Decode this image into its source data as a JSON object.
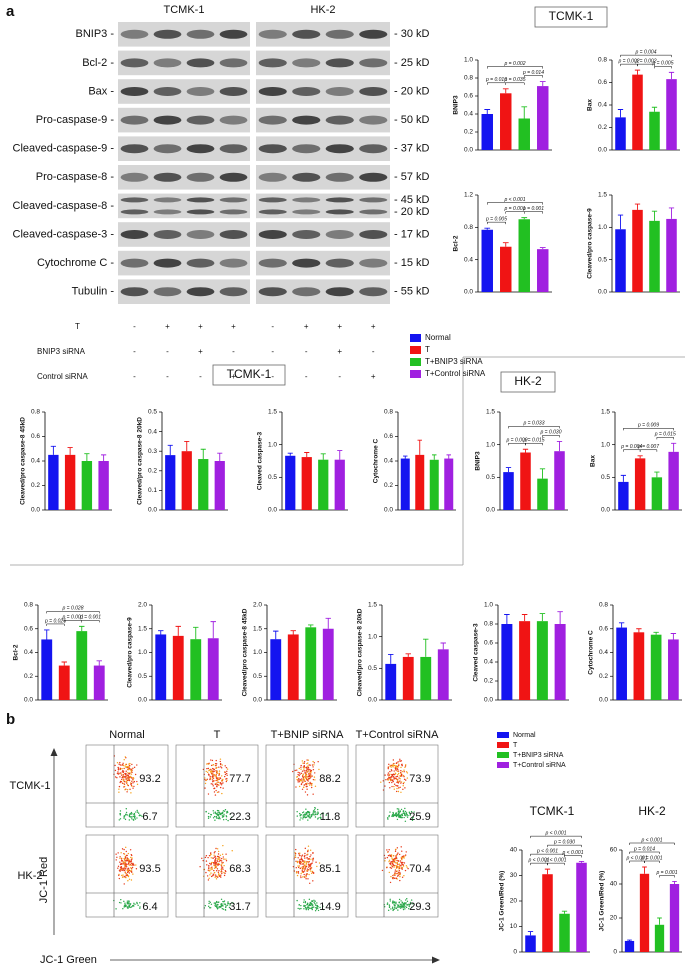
{
  "panel_a": {
    "label": "a",
    "blot": {
      "cell_lines": [
        "TCMK-1",
        "HK-2"
      ],
      "proteins": [
        {
          "name": "BNIP3 -",
          "kd": [
            "- 30 kD"
          ]
        },
        {
          "name": "Bcl-2 -",
          "kd": [
            "- 25 kD"
          ]
        },
        {
          "name": "Bax -",
          "kd": [
            "- 20 kD"
          ]
        },
        {
          "name": "Pro-caspase-9 -",
          "kd": [
            "- 50 kD"
          ]
        },
        {
          "name": "Cleaved-caspase-9 -",
          "kd": [
            "- 37 kD"
          ]
        },
        {
          "name": "Pro-caspase-8 -",
          "kd": [
            "- 57 kD"
          ]
        },
        {
          "name": "Cleaved-caspase-8 -",
          "kd": [
            "- 45 kD",
            "- 20 kD"
          ]
        },
        {
          "name": "Cleaved-caspase-3 -",
          "kd": [
            "- 17 kD"
          ]
        },
        {
          "name": "Cytochrome C -",
          "kd": [
            "- 15 kD"
          ]
        },
        {
          "name": "Tubulin -",
          "kd": [
            "- 55 kD"
          ]
        }
      ],
      "treatments": [
        {
          "name": "T",
          "signs": [
            "-",
            "+",
            "+",
            "+",
            "-",
            "+",
            "+",
            "+"
          ]
        },
        {
          "name": "BNIP3 siRNA",
          "signs": [
            "-",
            "-",
            "+",
            "-",
            "-",
            "-",
            "+",
            "-"
          ]
        },
        {
          "name": "Control siRNA",
          "signs": [
            "-",
            "-",
            "-",
            "+",
            "-",
            "-",
            "-",
            "+"
          ]
        }
      ]
    },
    "legend": [
      {
        "name": "Normal",
        "color": "#1414f0"
      },
      {
        "name": "T",
        "color": "#f01414"
      },
      {
        "name": "T+BNIP3 siRNA",
        "color": "#22c022"
      },
      {
        "name": "T+Control siRNA",
        "color": "#a020e0"
      }
    ],
    "headers": [
      "TCMK-1",
      "TCMK-1",
      "HK-2"
    ]
  },
  "panel_b": {
    "label": "b",
    "flow": {
      "columns": [
        "Normal",
        "T",
        "T+BNIP siRNA",
        "T+Control siRNA"
      ],
      "rows": [
        {
          "name": "TCMK-1",
          "top": [
            93.2,
            77.7,
            88.2,
            73.9
          ],
          "bottom": [
            6.7,
            22.3,
            11.8,
            25.9
          ]
        },
        {
          "name": "HK-2",
          "top": [
            93.5,
            68.3,
            85.1,
            70.4
          ],
          "bottom": [
            6.4,
            31.7,
            14.9,
            29.3
          ]
        }
      ],
      "y_label": "JC-1 Red",
      "x_label": "JC-1 Green"
    },
    "legend": [
      {
        "name": "Normal",
        "color": "#1414f0"
      },
      {
        "name": "T",
        "color": "#f01414"
      },
      {
        "name": "T+BNIP3 siRNA",
        "color": "#22c022"
      },
      {
        "name": "T+Control siRNA",
        "color": "#a020e0"
      }
    ],
    "headers": [
      "TCMK-1",
      "HK-2"
    ]
  },
  "chart_data": [
    {
      "type": "bar",
      "ylabel": "BNIP3",
      "values": [
        0.4,
        0.63,
        0.35,
        0.71
      ],
      "errors": [
        0.05,
        0.05,
        0.13,
        0.05
      ],
      "ylim": [
        0,
        1
      ],
      "yticks": [
        {
          "value": 0,
          "label": "0.0"
        },
        0.2,
        0.4,
        0.6,
        0.8,
        {
          "value": 1,
          "label": "1.0"
        }
      ],
      "comparisons": [
        {
          "groups": [
            0,
            1
          ],
          "label": "p = 0.010"
        },
        {
          "groups": [
            1,
            2
          ],
          "label": "p = 0.035"
        },
        {
          "groups": [
            2,
            3
          ],
          "label": "p = 0.014"
        },
        {
          "groups": [
            0,
            3
          ],
          "label": "p = 0.002"
        }
      ]
    },
    {
      "type": "bar",
      "ylabel": "Bax",
      "values": [
        0.29,
        0.67,
        0.34,
        0.63
      ],
      "errors": [
        0.07,
        0.04,
        0.04,
        0.06
      ],
      "ylim": [
        0,
        0.8
      ],
      "yticks": [
        {
          "value": 0,
          "label": "0.0"
        },
        0.2,
        0.4,
        0.6,
        0.8
      ],
      "comparisons": [
        {
          "groups": [
            0,
            1
          ],
          "label": "p = 0.002"
        },
        {
          "groups": [
            1,
            2
          ],
          "label": "p = 0.002"
        },
        {
          "groups": [
            2,
            3
          ],
          "label": "p = 0.005"
        },
        {
          "groups": [
            0,
            3
          ],
          "label": "p = 0.004"
        }
      ]
    },
    {
      "type": "bar",
      "ylabel": "Bcl-2",
      "values": [
        0.77,
        0.56,
        0.9,
        0.53
      ],
      "errors": [
        0.02,
        0.05,
        0.02,
        0.02
      ],
      "ylim": [
        0,
        1.2
      ],
      "yticks": [
        {
          "value": 0,
          "label": "0.0"
        },
        0.4,
        0.8,
        1.2
      ],
      "comparisons": [
        {
          "groups": [
            0,
            1
          ],
          "label": "p = 0.005"
        },
        {
          "groups": [
            1,
            2
          ],
          "label": "p = 0.001"
        },
        {
          "groups": [
            2,
            3
          ],
          "label": "p = 0.001"
        },
        {
          "groups": [
            0,
            3
          ],
          "label": "p < 0.001"
        }
      ]
    },
    {
      "type": "bar",
      "ylabel": "Cleaved/pro caspase-9",
      "values": [
        0.97,
        1.27,
        1.1,
        1.13
      ],
      "errors": [
        0.22,
        0.09,
        0.15,
        0.17
      ],
      "ylim": [
        0,
        1.5
      ],
      "yticks": [
        {
          "value": 0,
          "label": "0.0"
        },
        0.5,
        {
          "value": 1,
          "label": "1.0"
        },
        1.5
      ]
    },
    {
      "type": "bar",
      "ylabel": "Cleaved/pro caspase-8 45kD",
      "values": [
        0.45,
        0.45,
        0.4,
        0.4
      ],
      "errors": [
        0.07,
        0.06,
        0.06,
        0.05
      ],
      "ylim": [
        0,
        0.8
      ],
      "yticks": [
        {
          "value": 0,
          "label": "0.0"
        },
        0.2,
        0.4,
        0.6,
        0.8
      ]
    },
    {
      "type": "bar",
      "ylabel": "Cleaved/pro caspase-8 20kD",
      "values": [
        0.28,
        0.3,
        0.26,
        0.25
      ],
      "errors": [
        0.05,
        0.05,
        0.05,
        0.04
      ],
      "ylim": [
        0,
        0.5
      ],
      "yticks": [
        {
          "value": 0,
          "label": "0.0"
        },
        0.1,
        0.2,
        0.3,
        0.4,
        0.5
      ]
    },
    {
      "type": "bar",
      "ylabel": "Cleaved caspase-3",
      "values": [
        0.83,
        0.81,
        0.77,
        0.77
      ],
      "errors": [
        0.04,
        0.07,
        0.09,
        0.14
      ],
      "ylim": [
        0,
        1.5
      ],
      "yticks": [
        {
          "value": 0,
          "label": "0.0"
        },
        0.5,
        {
          "value": 1,
          "label": "1.0"
        },
        1.5
      ]
    },
    {
      "type": "bar",
      "ylabel": "Cytochrome C",
      "values": [
        0.42,
        0.45,
        0.41,
        0.42
      ],
      "errors": [
        0.02,
        0.12,
        0.04,
        0.03
      ],
      "ylim": [
        0,
        0.8
      ],
      "yticks": [
        {
          "value": 0,
          "label": "0.0"
        },
        0.2,
        0.4,
        0.6,
        0.8
      ]
    },
    {
      "type": "bar",
      "ylabel": "BNIP3",
      "values": [
        0.58,
        0.88,
        0.48,
        0.9
      ],
      "errors": [
        0.07,
        0.05,
        0.15,
        0.15
      ],
      "ylim": [
        0,
        1.5
      ],
      "yticks": [
        {
          "value": 0,
          "label": "0.0"
        },
        0.5,
        {
          "value": 1,
          "label": "1.0"
        },
        1.5
      ],
      "comparisons": [
        {
          "groups": [
            0,
            1
          ],
          "label": "p = 0.009"
        },
        {
          "groups": [
            1,
            2
          ],
          "label": "p = 0.015"
        },
        {
          "groups": [
            2,
            3
          ],
          "label": "p = 0.030"
        },
        {
          "groups": [
            0,
            3
          ],
          "label": "p = 0.033"
        }
      ]
    },
    {
      "type": "bar",
      "ylabel": "Bax",
      "values": [
        0.43,
        0.79,
        0.5,
        0.89
      ],
      "errors": [
        0.1,
        0.04,
        0.08,
        0.13
      ],
      "ylim": [
        0,
        1.5
      ],
      "yticks": [
        {
          "value": 0,
          "label": "0.0"
        },
        0.5,
        {
          "value": 1,
          "label": "1.0"
        },
        1.5
      ],
      "comparisons": [
        {
          "groups": [
            0,
            1
          ],
          "label": "p = 0.004"
        },
        {
          "groups": [
            1,
            2
          ],
          "label": "p = 0.007"
        },
        {
          "groups": [
            2,
            3
          ],
          "label": "p = 0.015"
        },
        {
          "groups": [
            0,
            3
          ],
          "label": "p = 0.009"
        }
      ]
    },
    {
      "type": "bar",
      "ylabel": "Bcl-2",
      "values": [
        0.51,
        0.29,
        0.58,
        0.29
      ],
      "errors": [
        0.08,
        0.03,
        0.04,
        0.04
      ],
      "ylim": [
        0,
        0.8
      ],
      "yticks": [
        {
          "value": 0,
          "label": "0.0"
        },
        0.2,
        0.4,
        0.6,
        0.8
      ],
      "comparisons": [
        {
          "groups": [
            0,
            1
          ],
          "label": "p = 0.026"
        },
        {
          "groups": [
            1,
            2
          ],
          "label": "p = 0.001"
        },
        {
          "groups": [
            2,
            3
          ],
          "label": "p = 0.001"
        },
        {
          "groups": [
            0,
            3
          ],
          "label": "p = 0.028"
        }
      ]
    },
    {
      "type": "bar",
      "ylabel": "Cleaved/pro caspase-9",
      "values": [
        1.38,
        1.35,
        1.28,
        1.3
      ],
      "errors": [
        0.08,
        0.2,
        0.25,
        0.35
      ],
      "ylim": [
        0,
        2
      ],
      "yticks": [
        {
          "value": 0,
          "label": "0.0"
        },
        0.5,
        {
          "value": 1,
          "label": "1.0"
        },
        1.5,
        {
          "value": 2,
          "label": "2.0"
        }
      ]
    },
    {
      "type": "bar",
      "ylabel": "Cleaved/pro caspase-8 45kD",
      "values": [
        1.28,
        1.38,
        1.53,
        1.5
      ],
      "errors": [
        0.17,
        0.08,
        0.05,
        0.22
      ],
      "ylim": [
        0,
        2
      ],
      "yticks": [
        {
          "value": 0,
          "label": "0.0"
        },
        0.5,
        {
          "value": 1,
          "label": "1.0"
        },
        1.5,
        {
          "value": 2,
          "label": "2.0"
        }
      ]
    },
    {
      "type": "bar",
      "ylabel": "Cleaved/pro caspase-8 20kD",
      "values": [
        0.57,
        0.68,
        0.68,
        0.8
      ],
      "errors": [
        0.15,
        0.05,
        0.28,
        0.1
      ],
      "ylim": [
        0,
        1.5
      ],
      "yticks": [
        {
          "value": 0,
          "label": "0.0"
        },
        0.5,
        {
          "value": 1,
          "label": "1.0"
        },
        1.5
      ]
    },
    {
      "type": "bar",
      "ylabel": "Cleaved caspase-3",
      "values": [
        0.8,
        0.83,
        0.83,
        0.8
      ],
      "errors": [
        0.1,
        0.07,
        0.08,
        0.13
      ],
      "ylim": [
        0,
        1
      ],
      "yticks": [
        {
          "value": 0,
          "label": "0.0"
        },
        0.2,
        0.4,
        0.6,
        0.8,
        {
          "value": 1,
          "label": "1.0"
        }
      ]
    },
    {
      "type": "bar",
      "ylabel": "Cytochrome C",
      "values": [
        0.61,
        0.57,
        0.55,
        0.51
      ],
      "errors": [
        0.04,
        0.03,
        0.02,
        0.05
      ],
      "ylim": [
        0,
        0.8
      ],
      "yticks": [
        {
          "value": 0,
          "label": "0.0"
        },
        0.2,
        0.4,
        0.6,
        0.8
      ]
    },
    {
      "type": "bar",
      "ylabel": "JC-1 Green/Red (%)",
      "values": [
        6.5,
        30.5,
        15,
        35
      ],
      "errors": [
        1.5,
        2,
        1,
        0.5
      ],
      "ylim": [
        0,
        40
      ],
      "yticks": [
        0,
        10,
        20,
        30,
        40
      ],
      "comparisons": [
        {
          "groups": [
            0,
            1
          ],
          "label": "p < 0.001"
        },
        {
          "groups": [
            1,
            2
          ],
          "label": "p < 0.001"
        },
        {
          "groups": [
            2,
            3
          ],
          "label": "p < 0.001"
        },
        {
          "groups": [
            0,
            2
          ],
          "label": "p < 0.001"
        },
        {
          "groups": [
            1,
            3
          ],
          "label": "p = 0.030"
        },
        {
          "groups": [
            0,
            3
          ],
          "label": "p < 0.001"
        }
      ]
    },
    {
      "type": "bar",
      "ylabel": "JC-1 Green/Red (%)",
      "values": [
        6.5,
        46,
        16,
        40
      ],
      "errors": [
        0.5,
        4,
        4,
        1.5
      ],
      "ylim": [
        0,
        60
      ],
      "yticks": [
        0,
        20,
        40,
        60
      ],
      "comparisons": [
        {
          "groups": [
            0,
            1
          ],
          "label": "p < 0.001"
        },
        {
          "groups": [
            1,
            2
          ],
          "label": "p = 0.001"
        },
        {
          "groups": [
            2,
            3
          ],
          "label": "p = 0.001"
        },
        {
          "groups": [
            0,
            2
          ],
          "label": "p = 0.014"
        },
        {
          "groups": [
            0,
            3
          ],
          "label": "p < 0.001"
        }
      ]
    }
  ]
}
